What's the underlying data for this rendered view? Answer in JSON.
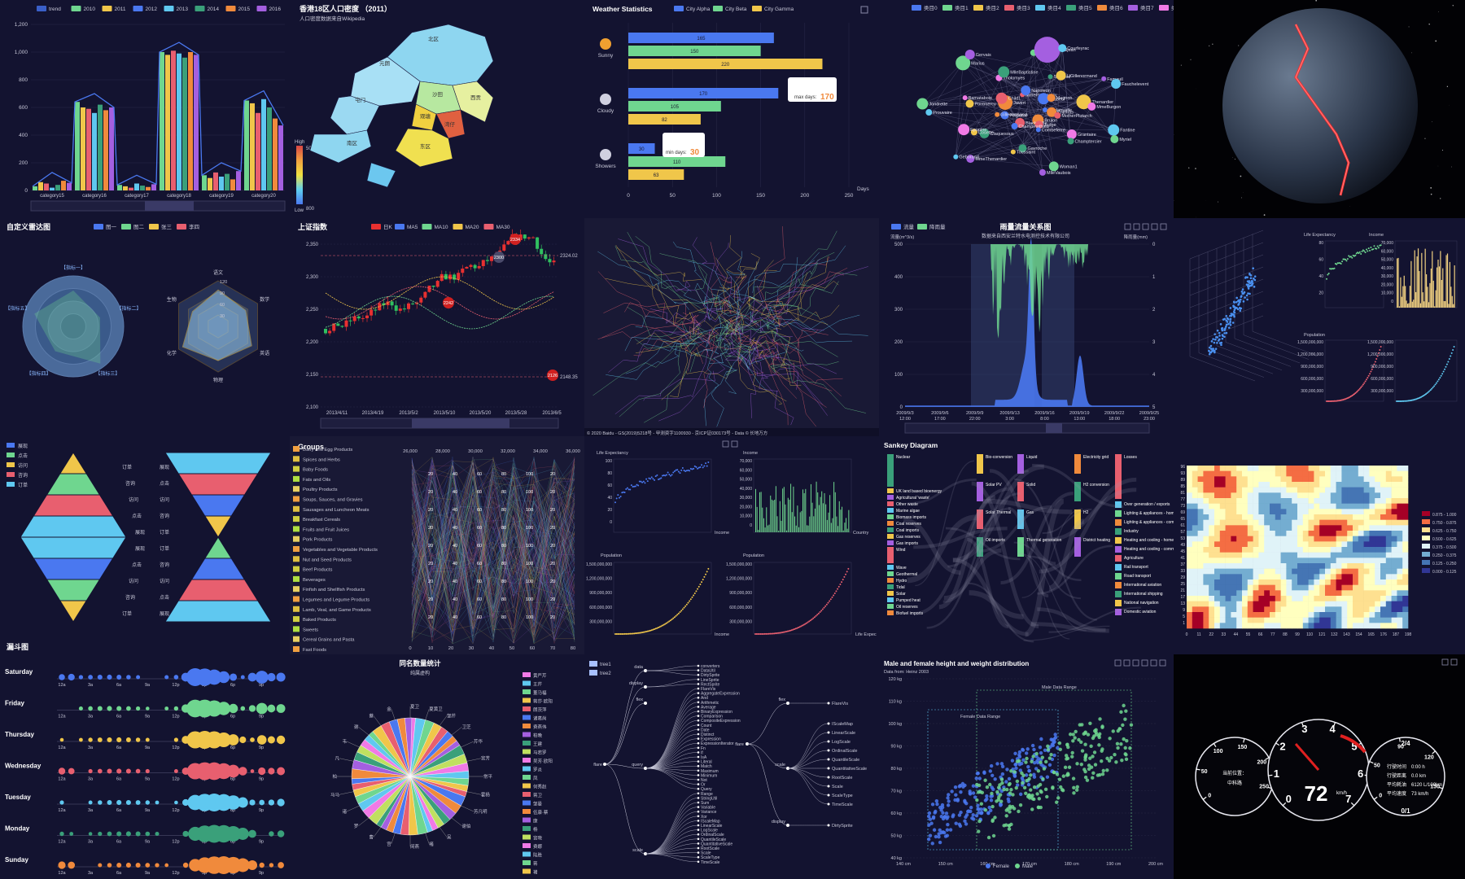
{
  "theme": {
    "bg": "#131330",
    "grid": "#2b2b4a",
    "axis": "#7a7a99",
    "text": "#c8c8d8",
    "palette": [
      "#4a78f0",
      "#6fd68f",
      "#f0c64a",
      "#e85f6f",
      "#5fc8f0",
      "#3aa07a",
      "#f08a3c",
      "#a45fe0",
      "#f07ae6"
    ]
  },
  "panels": [
    {
      "id": "p1",
      "title": "",
      "legend": [
        "trend",
        "2010",
        "2011",
        "2012",
        "2013",
        "2014",
        "2015",
        "2016"
      ],
      "yticks": [
        "1,200",
        "1,000",
        "800",
        "600",
        "400",
        "200",
        "0"
      ],
      "xticks": [
        "category15",
        "category16",
        "category17",
        "category18",
        "category19",
        "category20"
      ]
    },
    {
      "id": "p2",
      "title": "香港18区人口密度 （2011）",
      "subtitle": "人口密度数据来自Wikipedia",
      "visual_high": "High",
      "visual_low": "Low",
      "max": "50000",
      "min": "800",
      "districts": [
        "北区",
        "元朗",
        "屯门",
        "沙田",
        "西贡",
        "观塘",
        "湾仔",
        "东区",
        "南区"
      ]
    },
    {
      "id": "p3",
      "title": "Weather Statistics",
      "legend": [
        "City Alpha",
        "City Beta",
        "City Gamma"
      ],
      "rows": [
        "Sunny",
        "Cloudy",
        "Showers"
      ],
      "xticks": [
        "0",
        "50",
        "100",
        "150",
        "200",
        "250"
      ],
      "xlabel": "Days",
      "tip1": "max days: ",
      "tip1val": "170",
      "tip2": "min days: ",
      "tip2val": "30"
    },
    {
      "id": "p4",
      "title": "",
      "legend": [
        "类目0",
        "类目1",
        "类目2",
        "类目3",
        "类目4",
        "类目5",
        "类目6",
        "类目7",
        "类目8"
      ],
      "nodes": [
        "Boulatruelle",
        "Claquesous",
        "Gueulemer",
        "Brujon",
        "Pontmercy",
        "Fameuil",
        "Blacheville",
        "Tholomyes",
        "Fantine",
        "Perpetue",
        "Simplice",
        "Woman1",
        "Javert",
        "Thenardier",
        "MmeThenardier",
        "MmePontmercy",
        "Grantaire",
        "Prouvaire",
        "Mabeuf",
        "Gavroche",
        "Marius",
        "Enjolras",
        "Cosette",
        "Valjean",
        "Judge",
        "Bamatabois",
        "Fauchelevent",
        "Champmathieu",
        "MlleBaptistine",
        "Myriel",
        "Gillenormand",
        "LtGillenormand",
        "MlleVaubois",
        "Child1",
        "MmeBurgon",
        "Geborand",
        "Napoleon",
        "Champtercier",
        "Jondrette",
        "Magnon",
        "Toussaint",
        "Gervais",
        "MotherPlutarch",
        "Eponine",
        "Courfeyrac",
        "Combeferre"
      ]
    },
    {
      "id": "p5",
      "title": ""
    },
    {
      "id": "p6",
      "title": "自定义雷达图",
      "legend": [
        "图一",
        "图二",
        "张三",
        "李四"
      ],
      "r1": [
        "指标一",
        "指标二",
        "指标三",
        "指标四",
        "指标五"
      ],
      "r2": [
        "语文",
        "数学",
        "英语",
        "物理",
        "化学",
        "生物"
      ],
      "r2ticks": [
        "120",
        "90",
        "60",
        "30"
      ]
    },
    {
      "id": "p7",
      "title": "上证指数",
      "legend": [
        "日K",
        "MA5",
        "MA10",
        "MA20",
        "MA30"
      ],
      "yticks": [
        "2,350",
        "2,300",
        "2,250",
        "2,200",
        "2,150",
        "2,100"
      ],
      "xticks": [
        "2013/4/11",
        "2013/4/19",
        "2013/5/2",
        "2013/5/10",
        "2013/5/20",
        "2013/5/28",
        "2013/6/5"
      ],
      "marks": [
        "2334",
        "2300",
        "2242",
        "2126"
      ],
      "line1": "2324.02",
      "line2": "2148.35"
    },
    {
      "id": "p8",
      "title": "",
      "credit": "© 2020 Baidu - GS(2019)5218号 - 甲测资字1100930 - 京ICP证030173号 - Data © 长地万方"
    },
    {
      "id": "p9",
      "title": "雨量流量关系图",
      "subtitle": "数据来自西安兰特水电测控技术有限公司",
      "legend": [
        "流量",
        "降雨量"
      ],
      "yleft_name": "流量(m^3/s)",
      "yright_name": "降雨量(mm)",
      "yticks": [
        "500",
        "400",
        "300",
        "200",
        "100",
        "0"
      ],
      "yrticks": [
        "0",
        "1",
        "2",
        "3",
        "4",
        "5"
      ],
      "xticks": [
        "2009/9/3 12:00",
        "2009/9/6 17:00",
        "2009/9/9 22:00",
        "2009/9/13 3:00",
        "2009/9/16 8:00",
        "2009/9/19 13:00",
        "2009/9/22 18:00",
        "2009/9/25 23:00"
      ]
    },
    {
      "id": "p10",
      "title": "",
      "labels": [
        "Life Expectancy",
        "Income",
        "Population",
        "Country"
      ],
      "yt1": [
        "80",
        "60",
        "40",
        "20"
      ],
      "yt2": [
        "70,000",
        "60,000",
        "50,000",
        "40,000",
        "30,000",
        "20,000",
        "10,000",
        "0"
      ],
      "yt3": [
        "1,500,000,000",
        "1,200,000,000",
        "900,000,000",
        "600,000,000",
        "300,000,000"
      ],
      "yt4": [
        "1,500,000,000",
        "1,200,000,000",
        "900,000,000",
        "600,000,000",
        "300,000,000"
      ]
    },
    {
      "id": "p11",
      "title": "漏斗图",
      "legend": [
        "展现",
        "点击",
        "访问",
        "咨询",
        "订单"
      ]
    },
    {
      "id": "p12",
      "title": "Groups",
      "groups": [
        "Dairy and Egg Products",
        "Spices and Herbs",
        "Baby Foods",
        "Fats and Oils",
        "Poultry Products",
        "Soups, Sauces, and Gravies",
        "Sausages and Luncheon Meats",
        "Breakfast Cereals",
        "Fruits and Fruit Juices",
        "Pork Products",
        "Vegetables and Vegetable Products",
        "Nut and Seed Products",
        "Beef Products",
        "Beverages",
        "Finfish and Shellfish Products",
        "Legumes and Legume Products",
        "Lamb, Veal, and Game Products",
        "Baked Products",
        "Sweets",
        "Cereal Grains and Pasta",
        "Fast Foods"
      ],
      "top": [
        "26,000",
        "28,000",
        "30,000",
        "32,000",
        "34,000",
        "36,000"
      ],
      "bottom": [
        "0",
        "10",
        "20",
        "30",
        "40",
        "50",
        "60",
        "70",
        "80"
      ]
    },
    {
      "id": "p13",
      "title": "",
      "labels": [
        "Life Expectancy",
        "Income",
        "Population",
        "Country",
        "Income",
        "Life Expec"
      ],
      "yt1": [
        "100",
        "80",
        "60",
        "40",
        "20",
        "0"
      ],
      "yt2": [
        "70,000",
        "60,000",
        "50,000",
        "40,000",
        "30,000",
        "20,000",
        "10,000",
        "0"
      ],
      "yt3": [
        "1,500,000,000",
        "1,200,000,000",
        "900,000,000",
        "600,000,000",
        "300,000,000"
      ],
      "yt4": [
        "1,500,000,000",
        "1,200,000,000",
        "900,000,000",
        "600,000,000",
        "300,000,000"
      ]
    },
    {
      "id": "p14",
      "title": "Sankey Diagram",
      "nodes": [
        "Nuclear",
        "UK land based bioenergy",
        "Agricultural 'waste'",
        "Other waste",
        "Marine algae",
        "Biomass imports",
        "Coal reserves",
        "Coal imports",
        "Gas reserves",
        "Gas imports",
        "Wind",
        "Wave",
        "Geothermal",
        "Hydro",
        "Tidal",
        "Solar",
        "Solar PV",
        "Solar Thermal",
        "Pumped heat",
        "Oil reserves",
        "Biofuel imports",
        "Oil imports",
        "Bio-conversion",
        "Liquid",
        "Solid",
        "Gas",
        "Thermal generation",
        "Electricity grid",
        "H2 conversion",
        "H2",
        "District heating",
        "Losses",
        "Over generation / exports",
        "Lighting & appliances - homes",
        "Lighting & appliances - commercial",
        "Industry",
        "Heating and cooling - homes",
        "Heating and cooling - commercial",
        "Agriculture",
        "Rail transport",
        "Road transport",
        "International aviation",
        "International shipping",
        "National navigation",
        "Domestic aviation"
      ]
    },
    {
      "id": "p15",
      "title": "",
      "yticks": [
        "96",
        "93",
        "89",
        "85",
        "81",
        "77",
        "73",
        "69",
        "65",
        "61",
        "57",
        "53",
        "49",
        "45",
        "41",
        "37",
        "33",
        "29",
        "25",
        "21",
        "17",
        "13",
        "9",
        "5",
        "1"
      ],
      "xticks": [
        "0",
        "11",
        "22",
        "33",
        "44",
        "55",
        "66",
        "77",
        "88",
        "99",
        "110",
        "121",
        "132",
        "143",
        "154",
        "165",
        "176",
        "187",
        "198"
      ],
      "legend": [
        "0.875 - 1.000",
        "0.750 - 0.875",
        "0.625 - 0.750",
        "0.500 - 0.625",
        "0.375 - 0.500",
        "0.250 - 0.375",
        "0.125 - 0.250",
        "0.000 - 0.125"
      ]
    },
    {
      "id": "p16",
      "title": "",
      "days": [
        "Saturday",
        "Friday",
        "Thursday",
        "Wednesday",
        "Tuesday",
        "Monday",
        "Sunday"
      ],
      "hours": [
        "12a",
        "3a",
        "6a",
        "9a",
        "12p",
        "3p",
        "6p",
        "9p"
      ]
    },
    {
      "id": "p17",
      "title": "同名数量统计",
      "subtitle": "纯属虚构",
      "names": [
        "黄严芹",
        "王芹",
        "董马福",
        "蒋莎·欧阳",
        "朗茨萍",
        "诸葛尚",
        "费燕伟",
        "柏晚",
        "王建",
        "马若罗",
        "吴芳·欧阳",
        "罗炎",
        "凤",
        "何秀赵",
        "蒋卫",
        "邹曼",
        "伍康·蔡",
        "康",
        "杨",
        "宫晓",
        "费娜",
        "陆胜",
        "蒋",
        "褚"
      ],
      "pielabels": [
        "夏卫",
        "夏黄卫",
        "邹芹",
        "卫芝",
        "芹华",
        "宫芳",
        "常平",
        "霍杨",
        "芳凡明",
        "谢伯",
        "吴",
        "褚",
        "闵燕",
        "宫",
        "曹",
        "罗",
        "诸",
        "马马",
        "柏",
        "凡",
        "韦",
        "谢",
        "蔡",
        "金"
      ]
    },
    {
      "id": "p18",
      "title": "",
      "legend": [
        "tree1",
        "tree2"
      ],
      "nodes": [
        "data",
        "display",
        "flex",
        "query",
        "scale",
        "analytics",
        "animate",
        "flare",
        "util",
        "vis",
        "converters",
        "DataUtil",
        "DirtySprite",
        "LineSprite",
        "RectSprite",
        "FlareVis",
        "AggregateExpression",
        "And",
        "Arithmetic",
        "Average",
        "BinaryExpression",
        "Comparison",
        "CompositeExpression",
        "Count",
        "Date",
        "Distinct",
        "Expression",
        "ExpressionIterator",
        "Fn",
        "If",
        "IsA",
        "Literal",
        "Match",
        "Maximum",
        "Minimum",
        "Not",
        "Or",
        "Query",
        "Range",
        "StringUtil",
        "Sum",
        "Variable",
        "Variance",
        "Xor",
        "IScaleMap",
        "LinearScale",
        "LogScale",
        "OrdinalScale",
        "QuantileScale",
        "QuantitativeScale",
        "RootScale",
        "Scale",
        "ScaleType",
        "TimeScale",
        "DirtySprite"
      ]
    },
    {
      "id": "p19",
      "title": "Male and female height and weight distribution",
      "subtitle": "Data from: Heinz 2003",
      "legend": [
        "Female",
        "Male"
      ],
      "yticks": [
        "120 kg",
        "110 kg",
        "100 kg",
        "90 kg",
        "80 kg",
        "70 kg",
        "60 kg",
        "50 kg",
        "40 kg"
      ],
      "xticks": [
        "140 cm",
        "150 cm",
        "160 cm",
        "170 cm",
        "180 cm",
        "190 cm",
        "200 cm"
      ],
      "range1": "Female Data Range",
      "range2": "Male Data Range"
    },
    {
      "id": "p20",
      "title": "",
      "g1": [
        "0",
        "50",
        "100",
        "150",
        "200",
        "250"
      ],
      "g1label": "当前位置：",
      "g1val": "中科路",
      "g2": [
        "0",
        "1",
        "2",
        "3",
        "4",
        "5",
        "6",
        "7"
      ],
      "g2val": "72",
      "g2unit": "km/h",
      "g3": [
        "0",
        "50",
        "90",
        "120",
        "150",
        "2/4",
        "0/1"
      ],
      "g3lines": [
        "行驶时间",
        "行驶距离",
        "平均耗油",
        "平均速度"
      ],
      "g3vals": [
        "0:00 h",
        "0.0 km",
        "6120 L/100km",
        "73 km/h"
      ]
    }
  ]
}
